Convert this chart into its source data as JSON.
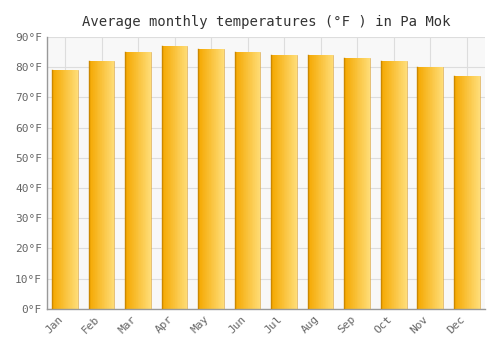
{
  "title": "Average monthly temperatures (°F ) in Pa Mok",
  "months": [
    "Jan",
    "Feb",
    "Mar",
    "Apr",
    "May",
    "Jun",
    "Jul",
    "Aug",
    "Sep",
    "Oct",
    "Nov",
    "Dec"
  ],
  "values": [
    79,
    82,
    85,
    87,
    86,
    85,
    84,
    84,
    83,
    82,
    80,
    77
  ],
  "bar_color_left": "#F5A800",
  "bar_color_right": "#FFD966",
  "ylim": [
    0,
    90
  ],
  "yticks": [
    0,
    10,
    20,
    30,
    40,
    50,
    60,
    70,
    80,
    90
  ],
  "ytick_labels": [
    "0°F",
    "10°F",
    "20°F",
    "30°F",
    "40°F",
    "50°F",
    "60°F",
    "70°F",
    "80°F",
    "90°F"
  ],
  "bg_color": "#ffffff",
  "plot_bg_color": "#f8f8f8",
  "grid_color": "#dddddd",
  "title_fontsize": 10,
  "tick_fontsize": 8,
  "bar_left_edge_color": "#cc8800",
  "bar_width": 0.7
}
